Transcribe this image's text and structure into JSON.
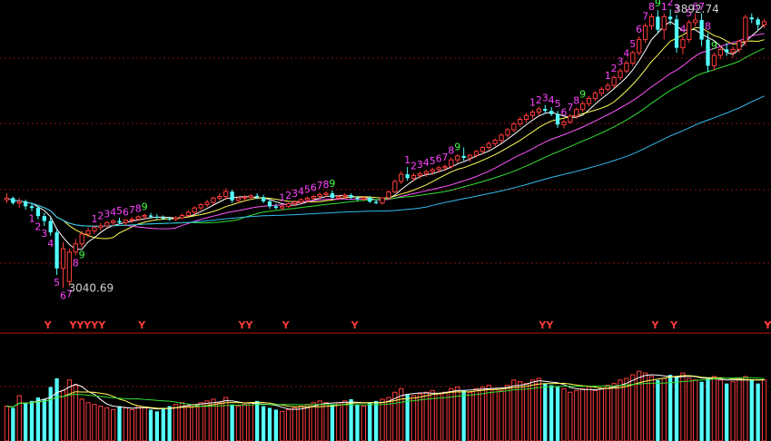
{
  "chart_data": {
    "type": "candlestick",
    "colors": {
      "up": "#ff3c3c",
      "down": "#54ffff",
      "ma5": "#ffffff",
      "ma10": "#ffff55",
      "ma20": "#ff55ff",
      "ma30": "#33dd33",
      "ma60": "#33bbee",
      "grid": "#8a1010",
      "seq": "#ff44ff",
      "seq9": "#44ff44",
      "signal": "#ff3a3a"
    },
    "price_range": [
      3005,
      3910
    ],
    "volume_range": [
      0,
      100
    ],
    "high_label": "3892.74",
    "low_label": "3040.69",
    "ohlc": [
      [
        3310,
        3330,
        3300,
        3315
      ],
      [
        3315,
        3320,
        3295,
        3300
      ],
      [
        3300,
        3315,
        3285,
        3305
      ],
      [
        3305,
        3310,
        3280,
        3290
      ],
      [
        3290,
        3300,
        3275,
        3285
      ],
      [
        3285,
        3290,
        3250,
        3260
      ],
      [
        3260,
        3270,
        3230,
        3245
      ],
      [
        3245,
        3255,
        3200,
        3210
      ],
      [
        3210,
        3220,
        3080,
        3100
      ],
      [
        3100,
        3180,
        3040,
        3160
      ],
      [
        3060,
        3160,
        3045,
        3150
      ],
      [
        3150,
        3190,
        3140,
        3175
      ],
      [
        3175,
        3215,
        3165,
        3205
      ],
      [
        3205,
        3225,
        3195,
        3215
      ],
      [
        3215,
        3230,
        3205,
        3225
      ],
      [
        3225,
        3240,
        3215,
        3230
      ],
      [
        3230,
        3245,
        3225,
        3240
      ],
      [
        3240,
        3250,
        3230,
        3245
      ],
      [
        3245,
        3255,
        3235,
        3240
      ],
      [
        3240,
        3250,
        3230,
        3248
      ],
      [
        3248,
        3258,
        3240,
        3250
      ],
      [
        3250,
        3262,
        3245,
        3258
      ],
      [
        3258,
        3268,
        3250,
        3262
      ],
      [
        3262,
        3270,
        3252,
        3258
      ],
      [
        3258,
        3266,
        3250,
        3255
      ],
      [
        3255,
        3262,
        3248,
        3252
      ],
      [
        3252,
        3258,
        3245,
        3250
      ],
      [
        3250,
        3260,
        3245,
        3255
      ],
      [
        3255,
        3268,
        3250,
        3262
      ],
      [
        3262,
        3278,
        3258,
        3272
      ],
      [
        3272,
        3290,
        3265,
        3285
      ],
      [
        3285,
        3300,
        3278,
        3295
      ],
      [
        3295,
        3310,
        3288,
        3302
      ],
      [
        3302,
        3320,
        3295,
        3315
      ],
      [
        3315,
        3330,
        3308,
        3320
      ],
      [
        3320,
        3345,
        3310,
        3335
      ],
      [
        3335,
        3340,
        3300,
        3308
      ],
      [
        3308,
        3320,
        3300,
        3315
      ],
      [
        3315,
        3325,
        3305,
        3318
      ],
      [
        3318,
        3328,
        3310,
        3322
      ],
      [
        3322,
        3330,
        3312,
        3318
      ],
      [
        3318,
        3325,
        3300,
        3305
      ],
      [
        3305,
        3312,
        3282,
        3290
      ],
      [
        3290,
        3298,
        3280,
        3285
      ],
      [
        3285,
        3295,
        3278,
        3290
      ],
      [
        3290,
        3302,
        3285,
        3298
      ],
      [
        3298,
        3308,
        3292,
        3303
      ],
      [
        3303,
        3315,
        3298,
        3310
      ],
      [
        3310,
        3320,
        3302,
        3315
      ],
      [
        3315,
        3325,
        3308,
        3320
      ],
      [
        3320,
        3332,
        3312,
        3326
      ],
      [
        3326,
        3336,
        3318,
        3330
      ],
      [
        3330,
        3338,
        3312,
        3316
      ],
      [
        3316,
        3324,
        3308,
        3320
      ],
      [
        3320,
        3330,
        3314,
        3324
      ],
      [
        3324,
        3330,
        3312,
        3316
      ],
      [
        3316,
        3322,
        3306,
        3312
      ],
      [
        3312,
        3320,
        3305,
        3316
      ],
      [
        3316,
        3322,
        3300,
        3304
      ],
      [
        3304,
        3310,
        3296,
        3300
      ],
      [
        3300,
        3318,
        3295,
        3316
      ],
      [
        3316,
        3338,
        3310,
        3334
      ],
      [
        3334,
        3372,
        3330,
        3366
      ],
      [
        3366,
        3398,
        3358,
        3388
      ],
      [
        3388,
        3410,
        3368,
        3376
      ],
      [
        3376,
        3392,
        3366,
        3384
      ],
      [
        3384,
        3396,
        3374,
        3390
      ],
      [
        3390,
        3402,
        3380,
        3396
      ],
      [
        3396,
        3408,
        3386,
        3402
      ],
      [
        3402,
        3414,
        3392,
        3408
      ],
      [
        3408,
        3418,
        3398,
        3412
      ],
      [
        3412,
        3440,
        3404,
        3432
      ],
      [
        3432,
        3450,
        3422,
        3444
      ],
      [
        3444,
        3470,
        3430,
        3438
      ],
      [
        3438,
        3450,
        3426,
        3446
      ],
      [
        3446,
        3462,
        3440,
        3458
      ],
      [
        3458,
        3474,
        3450,
        3470
      ],
      [
        3470,
        3488,
        3462,
        3482
      ],
      [
        3482,
        3498,
        3474,
        3492
      ],
      [
        3492,
        3514,
        3484,
        3508
      ],
      [
        3508,
        3530,
        3500,
        3524
      ],
      [
        3524,
        3548,
        3516,
        3542
      ],
      [
        3542,
        3564,
        3534,
        3556
      ],
      [
        3556,
        3576,
        3546,
        3568
      ],
      [
        3568,
        3586,
        3558,
        3578
      ],
      [
        3578,
        3594,
        3568,
        3588
      ],
      [
        3588,
        3600,
        3574,
        3582
      ],
      [
        3582,
        3594,
        3566,
        3572
      ],
      [
        3572,
        3582,
        3530,
        3540
      ],
      [
        3540,
        3556,
        3528,
        3548
      ],
      [
        3548,
        3572,
        3542,
        3566
      ],
      [
        3566,
        3592,
        3558,
        3586
      ],
      [
        3586,
        3612,
        3578,
        3604
      ],
      [
        3604,
        3628,
        3596,
        3620
      ],
      [
        3620,
        3642,
        3612,
        3636
      ],
      [
        3636,
        3656,
        3626,
        3648
      ],
      [
        3648,
        3668,
        3640,
        3660
      ],
      [
        3660,
        3690,
        3652,
        3684
      ],
      [
        3684,
        3712,
        3676,
        3704
      ],
      [
        3704,
        3736,
        3696,
        3728
      ],
      [
        3728,
        3766,
        3720,
        3760
      ],
      [
        3760,
        3810,
        3752,
        3800
      ],
      [
        3800,
        3850,
        3790,
        3842
      ],
      [
        3842,
        3880,
        3830,
        3870
      ],
      [
        3870,
        3890,
        3820,
        3830
      ],
      [
        3830,
        3880,
        3800,
        3870
      ],
      [
        3870,
        3893,
        3845,
        3862
      ],
      [
        3862,
        3875,
        3760,
        3775
      ],
      [
        3775,
        3810,
        3755,
        3800
      ],
      [
        3800,
        3860,
        3790,
        3852
      ],
      [
        3852,
        3880,
        3840,
        3860
      ],
      [
        3860,
        3880,
        3780,
        3800
      ],
      [
        3800,
        3820,
        3700,
        3720
      ],
      [
        3720,
        3760,
        3705,
        3752
      ],
      [
        3752,
        3780,
        3740,
        3770
      ],
      [
        3770,
        3790,
        3750,
        3762
      ],
      [
        3762,
        3780,
        3745,
        3770
      ],
      [
        3770,
        3800,
        3760,
        3795
      ],
      [
        3795,
        3876,
        3780,
        3868
      ],
      [
        3868,
        3880,
        3850,
        3862
      ],
      [
        3862,
        3868,
        3830,
        3845
      ],
      [
        3845,
        3862,
        3835,
        3855
      ]
    ],
    "volume": [
      40,
      38,
      52,
      44,
      46,
      50,
      48,
      62,
      72,
      58,
      70,
      64,
      48,
      44,
      42,
      40,
      38,
      36,
      40,
      38,
      36,
      40,
      38,
      36,
      34,
      38,
      40,
      42,
      44,
      40,
      42,
      44,
      46,
      48,
      44,
      50,
      42,
      40,
      42,
      44,
      46,
      40,
      38,
      36,
      34,
      36,
      38,
      40,
      42,
      44,
      46,
      44,
      42,
      44,
      46,
      48,
      42,
      40,
      44,
      46,
      48,
      50,
      56,
      60,
      54,
      52,
      54,
      56,
      58,
      54,
      56,
      60,
      62,
      58,
      56,
      60,
      62,
      64,
      60,
      58,
      64,
      70,
      68,
      66,
      70,
      72,
      66,
      64,
      62,
      60,
      56,
      58,
      60,
      62,
      58,
      60,
      64,
      66,
      70,
      72,
      76,
      80,
      78,
      74,
      70,
      72,
      76,
      74,
      78,
      72,
      70,
      68,
      72,
      74,
      70,
      66,
      68,
      72,
      74,
      70,
      66,
      70
    ],
    "sequence_marks": [
      {
        "i": 4,
        "t": "1",
        "pos": "below"
      },
      {
        "i": 5,
        "t": "2",
        "pos": "below"
      },
      {
        "i": 6,
        "t": "3",
        "pos": "below"
      },
      {
        "i": 7,
        "t": "4",
        "pos": "below"
      },
      {
        "i": 8,
        "t": "5",
        "pos": "below"
      },
      {
        "i": 9,
        "t": "6",
        "pos": "below"
      },
      {
        "i": 10,
        "t": "7",
        "pos": "below"
      },
      {
        "i": 11,
        "t": "8",
        "pos": "below"
      },
      {
        "i": 12,
        "t": "9",
        "pos": "below"
      },
      {
        "i": 14,
        "t": "1",
        "pos": "above"
      },
      {
        "i": 15,
        "t": "2",
        "pos": "above"
      },
      {
        "i": 16,
        "t": "3",
        "pos": "above"
      },
      {
        "i": 17,
        "t": "4",
        "pos": "above"
      },
      {
        "i": 18,
        "t": "5",
        "pos": "above"
      },
      {
        "i": 19,
        "t": "6",
        "pos": "above"
      },
      {
        "i": 20,
        "t": "7",
        "pos": "above"
      },
      {
        "i": 21,
        "t": "8",
        "pos": "above"
      },
      {
        "i": 22,
        "t": "9",
        "pos": "above"
      },
      {
        "i": 44,
        "t": "1",
        "pos": "above"
      },
      {
        "i": 45,
        "t": "2",
        "pos": "above"
      },
      {
        "i": 46,
        "t": "3",
        "pos": "above"
      },
      {
        "i": 47,
        "t": "4",
        "pos": "above"
      },
      {
        "i": 48,
        "t": "5",
        "pos": "above"
      },
      {
        "i": 49,
        "t": "6",
        "pos": "above"
      },
      {
        "i": 50,
        "t": "7",
        "pos": "above"
      },
      {
        "i": 51,
        "t": "8",
        "pos": "above"
      },
      {
        "i": 52,
        "t": "9",
        "pos": "above"
      },
      {
        "i": 64,
        "t": "1",
        "pos": "above"
      },
      {
        "i": 65,
        "t": "2",
        "pos": "above"
      },
      {
        "i": 66,
        "t": "3",
        "pos": "above"
      },
      {
        "i": 67,
        "t": "4",
        "pos": "above"
      },
      {
        "i": 68,
        "t": "5",
        "pos": "above"
      },
      {
        "i": 69,
        "t": "6",
        "pos": "above"
      },
      {
        "i": 70,
        "t": "7",
        "pos": "above"
      },
      {
        "i": 71,
        "t": "8",
        "pos": "above"
      },
      {
        "i": 72,
        "t": "9",
        "pos": "above"
      },
      {
        "i": 84,
        "t": "1",
        "pos": "above"
      },
      {
        "i": 85,
        "t": "2",
        "pos": "above"
      },
      {
        "i": 86,
        "t": "3",
        "pos": "above"
      },
      {
        "i": 87,
        "t": "4",
        "pos": "above"
      },
      {
        "i": 88,
        "t": "5",
        "pos": "above"
      },
      {
        "i": 89,
        "t": "6",
        "pos": "above"
      },
      {
        "i": 90,
        "t": "7",
        "pos": "above"
      },
      {
        "i": 91,
        "t": "8",
        "pos": "above"
      },
      {
        "i": 92,
        "t": "9",
        "pos": "above"
      },
      {
        "i": 96,
        "t": "1",
        "pos": "above"
      },
      {
        "i": 97,
        "t": "2",
        "pos": "above"
      },
      {
        "i": 98,
        "t": "3",
        "pos": "above"
      },
      {
        "i": 99,
        "t": "4",
        "pos": "above"
      },
      {
        "i": 100,
        "t": "5",
        "pos": "above"
      },
      {
        "i": 101,
        "t": "6",
        "pos": "above"
      },
      {
        "i": 102,
        "t": "7",
        "pos": "above"
      },
      {
        "i": 103,
        "t": "8",
        "pos": "above"
      },
      {
        "i": 104,
        "t": "9",
        "pos": "above"
      },
      {
        "i": 105,
        "t": "1",
        "pos": "above"
      },
      {
        "i": 106,
        "t": "2",
        "pos": "above"
      },
      {
        "i": 107,
        "t": "3",
        "pos": "above"
      },
      {
        "i": 108,
        "t": "4",
        "pos": "above"
      },
      {
        "i": 109,
        "t": "5",
        "pos": "above"
      },
      {
        "i": 110,
        "t": "6",
        "pos": "above"
      },
      {
        "i": 111,
        "t": "7",
        "pos": "above"
      },
      {
        "i": 112,
        "t": "8",
        "pos": "above"
      },
      {
        "i": 113,
        "t": "9",
        "pos": "above"
      }
    ],
    "signals": [
      {
        "i": 6,
        "t": "Y"
      },
      {
        "i": 10,
        "t": "YYYYY"
      },
      {
        "i": 21,
        "t": "Y"
      },
      {
        "i": 37,
        "t": "YY"
      },
      {
        "i": 44,
        "t": "Y"
      },
      {
        "i": 55,
        "t": "Y"
      },
      {
        "i": 85,
        "t": "YY"
      },
      {
        "i": 103,
        "t": "Y"
      },
      {
        "i": 106,
        "t": "Y"
      },
      {
        "i": 135,
        "t": "Y"
      },
      {
        "i": 139,
        "t": "Y"
      },
      {
        "i": 145,
        "t": "YY"
      },
      {
        "i": 149,
        "t": "Y"
      }
    ]
  }
}
